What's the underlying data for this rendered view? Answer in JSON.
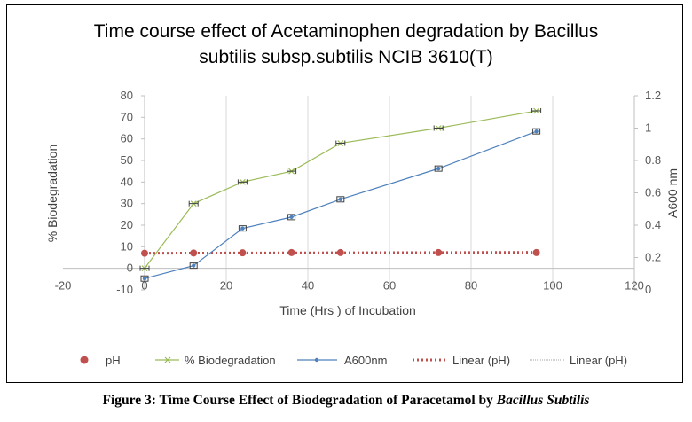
{
  "chart_data": {
    "type": "line",
    "title": [
      "Time course effect of Acetaminophen degradation by Bacillus",
      "subtilis subsp.subtilis NCIB 3610(T)"
    ],
    "xlabel": "Time (Hrs ) of Incubation",
    "ylabel_left": "% Biodegradation",
    "ylabel_right": "A600 nm",
    "xlim": [
      -20,
      120
    ],
    "ylim_left": [
      -10,
      80
    ],
    "ylim_right": [
      0,
      1.2
    ],
    "xticks": [
      "-20",
      "0",
      "20",
      "40",
      "60",
      "80",
      "100",
      "120"
    ],
    "yticks_left": [
      "-10",
      "0",
      "10",
      "20",
      "30",
      "40",
      "50",
      "60",
      "70",
      "80"
    ],
    "yticks_right": [
      "0",
      "0.2",
      "0.4",
      "0.6",
      "0.8",
      "1",
      "1.2"
    ],
    "grid": "vertical",
    "legend_position": "bottom",
    "series": [
      {
        "name": "pH",
        "axis": "left",
        "style": "markers",
        "color": "#c0504d",
        "x": [
          0,
          12,
          24,
          36,
          48,
          72,
          96
        ],
        "y": [
          7.0,
          7.1,
          7.2,
          7.3,
          7.3,
          7.3,
          7.3
        ]
      },
      {
        "name": "% Biodegradation",
        "axis": "left",
        "style": "line-x",
        "color": "#9bbb59",
        "x": [
          0,
          12,
          24,
          36,
          48,
          72,
          96
        ],
        "y": [
          0,
          30,
          40,
          45,
          58,
          65,
          73
        ]
      },
      {
        "name": "A600nm",
        "axis": "right",
        "style": "line-dot",
        "color": "#4f81bd",
        "x": [
          0,
          12,
          24,
          36,
          48,
          72,
          96
        ],
        "y": [
          0.07,
          0.15,
          0.38,
          0.45,
          0.56,
          0.75,
          0.98
        ]
      },
      {
        "name": "Linear (pH)",
        "axis": "left",
        "style": "trend-dotted",
        "color": "#c0504d",
        "x": [
          0,
          96
        ],
        "y": [
          7.0,
          7.4
        ]
      },
      {
        "name": "Linear (pH)",
        "axis": "left",
        "style": "legend-only",
        "color": "#a6a6a6",
        "x": [],
        "y": []
      }
    ]
  },
  "caption": {
    "prefix": "Figure 3: Time Course Effect of Biodegradation of Paracetamol by ",
    "organism": "Bacillus Subtilis"
  }
}
